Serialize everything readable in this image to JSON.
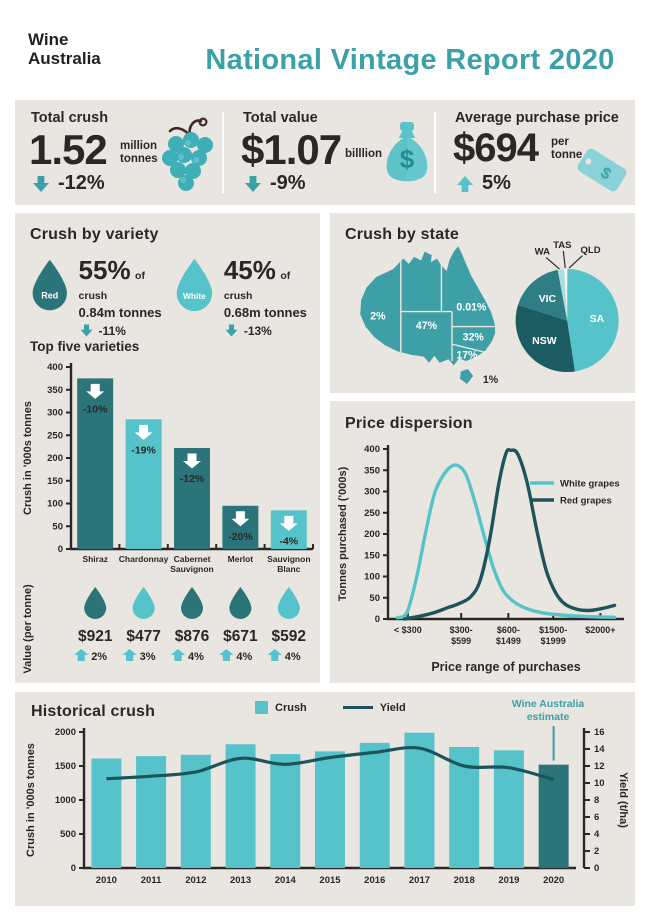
{
  "colors": {
    "teal": "#3ba0a8",
    "teal_light": "#56c3ca",
    "teal_dark": "#2a747a",
    "teal_darkest": "#1b5c62",
    "teal_vic": "#2f7e85",
    "teal_pale": "#aadde2",
    "tas_slice": "#eef5f4",
    "yield_line": "#1d545c",
    "panel_bg": "#e9e5e0",
    "ink": "#2b2727",
    "stem_brown": "#40291f"
  },
  "icons": {
    "dollar": "$"
  },
  "header": {
    "logo_line1": "Wine",
    "logo_line2": "Australia",
    "title": "National Vintage Report 2020"
  },
  "stats": {
    "items": [
      {
        "label": "Total crush",
        "value": "1.52",
        "unit": "million tonnes",
        "change": "-12%",
        "direction": "down",
        "icon": "grapes"
      },
      {
        "label": "Total value",
        "value": "$1.07",
        "unit": "billlion",
        "change": "-9%",
        "direction": "down",
        "icon": "money-bag"
      },
      {
        "label": "Average purchase price",
        "value": "$694",
        "unit": "per tonne",
        "change": "5%",
        "direction": "up",
        "icon": "price-tag"
      }
    ]
  },
  "variety": {
    "title": "Crush by variety",
    "items": [
      {
        "name": "Red",
        "pct": "55%",
        "of_label": "of crush",
        "tonnes": "0.84m tonnes",
        "change": "-11%",
        "color_key": "teal_dark"
      },
      {
        "name": "White",
        "pct": "45%",
        "of_label": "of crush",
        "tonnes": "0.68m tonnes",
        "change": "-13%",
        "color_key": "teal_light"
      }
    ]
  },
  "value_per_tonne": {
    "label": "Value (per tonne)",
    "values": [
      "$921",
      "$477",
      "$876",
      "$671",
      "$592"
    ],
    "changes": [
      "2%",
      "3%",
      "4%",
      "4%",
      "4%"
    ]
  },
  "chart_data": [
    {
      "id": "top_five_varieties",
      "type": "bar",
      "title": "Top five varieties",
      "ylabel": "Crush in '000s tonnes",
      "ylim": [
        0,
        400
      ],
      "ytick_step": 50,
      "categories": [
        [
          "Shiraz"
        ],
        [
          "Chardonnay"
        ],
        [
          "Cabernet",
          "Sauvignon"
        ],
        [
          "Merlot"
        ],
        [
          "Sauvignon",
          "Blanc"
        ]
      ],
      "values": [
        375,
        285,
        222,
        95,
        85
      ],
      "changes": [
        "-10%",
        "-19%",
        "-12%",
        "-20%",
        "-4%"
      ],
      "bar_color_keys": [
        "teal_dark",
        "teal_light",
        "teal_dark",
        "teal_dark",
        "teal_light"
      ]
    },
    {
      "id": "crush_by_state",
      "type": "pie",
      "title": "Crush by state",
      "slices": [
        {
          "label": "QLD",
          "pct": 0.01,
          "color_key": "teal_darkest",
          "placement": "outside"
        },
        {
          "label": "SA",
          "pct": 47,
          "color_key": "teal_light",
          "placement": "inside"
        },
        {
          "label": "NSW",
          "pct": 32,
          "color_key": "teal_darkest",
          "placement": "inside"
        },
        {
          "label": "VIC",
          "pct": 17,
          "color_key": "teal_vic",
          "placement": "inside"
        },
        {
          "label": "WA",
          "pct": 2,
          "color_key": "teal_pale",
          "placement": "outside"
        },
        {
          "label": "TAS",
          "pct": 1,
          "color_key": "tas_slice",
          "placement": "outside"
        }
      ],
      "map_labels": {
        "wa": "2%",
        "sa": "47%",
        "qld": "0.01%",
        "nsw": "32%",
        "vic": "17%",
        "tas": "1%"
      }
    },
    {
      "id": "price_dispersion",
      "type": "line",
      "title": "Price dispersion",
      "ylabel": "Tonnes purchased ('000s)",
      "xlabel": "Price range of purchases",
      "ylim": [
        0,
        400
      ],
      "ytick_step": 50,
      "xticks": [
        {
          "pos": 0.084,
          "lines": [
            "< $300"
          ]
        },
        {
          "pos": 0.31,
          "lines": [
            "$300-",
            "$599"
          ]
        },
        {
          "pos": 0.51,
          "lines": [
            "$600-",
            "$1499"
          ]
        },
        {
          "pos": 0.7,
          "lines": [
            "$1500-",
            "$1999"
          ]
        },
        {
          "pos": 0.9,
          "lines": [
            "$2000+"
          ]
        }
      ],
      "series": [
        {
          "name": "White grapes",
          "color_key": "teal_light",
          "points": [
            [
              0.04,
              3
            ],
            [
              0.08,
              15
            ],
            [
              0.12,
              95
            ],
            [
              0.16,
              205
            ],
            [
              0.2,
              300
            ],
            [
              0.25,
              350
            ],
            [
              0.29,
              362
            ],
            [
              0.33,
              340
            ],
            [
              0.37,
              272
            ],
            [
              0.41,
              190
            ],
            [
              0.45,
              115
            ],
            [
              0.49,
              65
            ],
            [
              0.54,
              38
            ],
            [
              0.6,
              22
            ],
            [
              0.66,
              14
            ],
            [
              0.72,
              10
            ],
            [
              0.8,
              7
            ],
            [
              0.88,
              5
            ],
            [
              0.96,
              4
            ]
          ]
        },
        {
          "name": "Red grapes",
          "color_key": "yield_line",
          "points": [
            [
              0.07,
              0
            ],
            [
              0.13,
              6
            ],
            [
              0.19,
              14
            ],
            [
              0.25,
              26
            ],
            [
              0.3,
              36
            ],
            [
              0.35,
              52
            ],
            [
              0.39,
              90
            ],
            [
              0.43,
              185
            ],
            [
              0.47,
              320
            ],
            [
              0.5,
              390
            ],
            [
              0.52,
              397
            ],
            [
              0.55,
              388
            ],
            [
              0.59,
              320
            ],
            [
              0.63,
              210
            ],
            [
              0.67,
              115
            ],
            [
              0.71,
              62
            ],
            [
              0.75,
              35
            ],
            [
              0.8,
              23
            ],
            [
              0.85,
              20
            ],
            [
              0.9,
              24
            ],
            [
              0.96,
              32
            ]
          ]
        }
      ]
    },
    {
      "id": "historical_crush",
      "type": "bar+line",
      "title": "Historical crush",
      "ylabel_left": "Crush in '000s tonnes",
      "ylabel_right": "Yield (t/ha)",
      "ylim_left": [
        0,
        2000
      ],
      "ytick_step_left": 500,
      "ylim_right": [
        0,
        16
      ],
      "ytick_step_right": 2,
      "categories": [
        "2010",
        "2011",
        "2012",
        "2013",
        "2014",
        "2015",
        "2016",
        "2017",
        "2018",
        "2019",
        "2020"
      ],
      "bars": {
        "name": "Crush",
        "values": [
          1610,
          1645,
          1665,
          1820,
          1675,
          1715,
          1840,
          1990,
          1780,
          1730,
          1520
        ],
        "highlight_last": true
      },
      "line": {
        "name": "Yield",
        "values": [
          10.5,
          10.8,
          11.3,
          12.9,
          12.2,
          13.0,
          13.6,
          14.1,
          12.0,
          11.8,
          10.4
        ]
      },
      "annotation": {
        "line1": "Wine Australia",
        "line2": "estimate"
      }
    }
  ]
}
